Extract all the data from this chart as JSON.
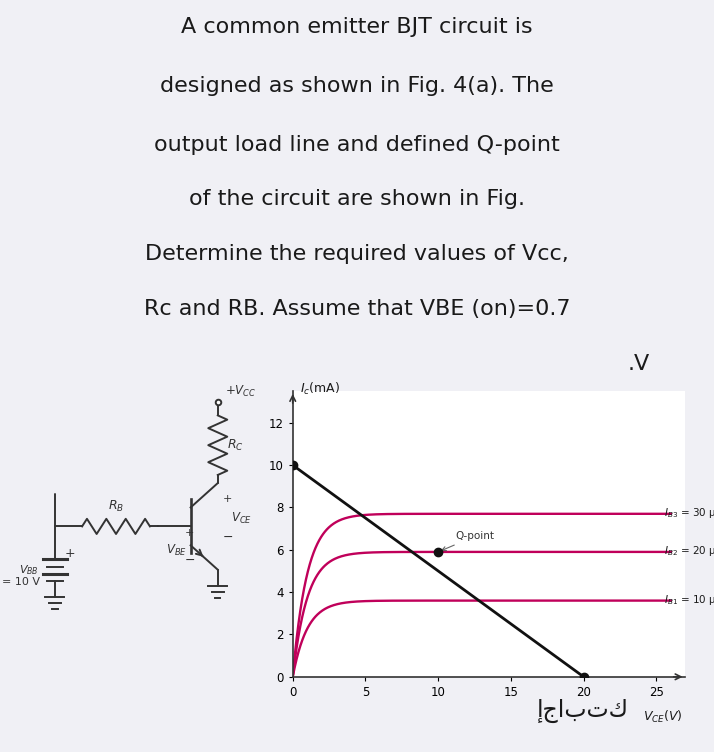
{
  "bg_color": "#f0f0f5",
  "title_lines": [
    "A common emitter BJT circuit is",
    "designed as shown in Fig. 4(a). The",
    "output load line and defined Q-point",
    "of the circuit are shown in Fig.",
    "Determine the required values of Vcc,",
    "Rc and RB. Assume that VBE (on)=0.7",
    ".V"
  ],
  "title_fontsize": 16,
  "footer_text": "إجابتك",
  "graph": {
    "xlim": [
      0,
      27
    ],
    "ylim": [
      0,
      13.5
    ],
    "xticks": [
      0,
      5,
      10,
      15,
      20,
      25
    ],
    "yticks": [
      0,
      2,
      4,
      6,
      8,
      10,
      12
    ],
    "load_line_x": [
      0,
      20
    ],
    "load_line_y": [
      10,
      0
    ],
    "q_point_x": 10,
    "q_point_y": 5.9,
    "curves": [
      {
        "Isat": 7.7,
        "IB": "30",
        "idx": "3"
      },
      {
        "Isat": 5.9,
        "IB": "20",
        "idx": "2"
      },
      {
        "Isat": 3.6,
        "IB": "10",
        "idx": "1"
      }
    ],
    "curve_color": "#c0005a",
    "load_line_color": "#111111"
  }
}
